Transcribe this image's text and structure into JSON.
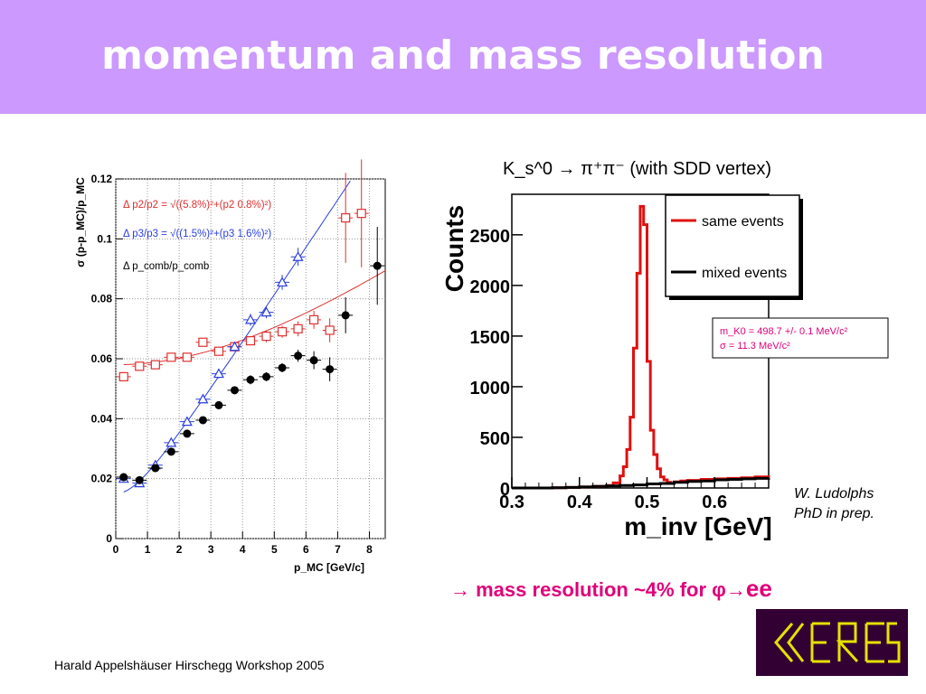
{
  "slide": {
    "title": "momentum and mass resolution",
    "footer": "Harald Appelshäuser  Hirschegg Workshop 2005",
    "credit_line1": "W. Ludolphs",
    "credit_line2": "PhD in prep.",
    "conclusion_arrow": "→",
    "conclusion_text": "mass resolution ~4% for ",
    "conclusion_phi": "φ",
    "conclusion_tail": "ee",
    "logo_text": "CERES",
    "colors": {
      "title_bg": "#cc99ff",
      "accent": "#e0007a"
    }
  },
  "chart_data": [
    {
      "type": "scatter",
      "xlabel": "p_MC [GeV/c]",
      "ylabel": "σ (p-p_MC)/p_MC",
      "xlim": [
        0,
        8.5
      ],
      "ylim": [
        0,
        0.12
      ],
      "x_ticks": [
        0,
        1,
        2,
        3,
        4,
        5,
        6,
        7,
        8
      ],
      "y_ticks": [
        0,
        0.02,
        0.04,
        0.06,
        0.08,
        0.1,
        0.12
      ],
      "grid": true,
      "legend": "top-left",
      "series": [
        {
          "name": "Δ p2/p2 = √((5.8%)²+(p2 0.8%)²)",
          "color": "#e03030",
          "marker": "open-square",
          "x": [
            0.25,
            0.75,
            1.25,
            1.75,
            2.25,
            2.75,
            3.25,
            3.75,
            4.25,
            4.75,
            5.25,
            5.75,
            6.25,
            6.75,
            7.25,
            7.75
          ],
          "y": [
            0.054,
            0.0575,
            0.058,
            0.0605,
            0.0605,
            0.0655,
            0.0625,
            0.064,
            0.066,
            0.0675,
            0.069,
            0.07,
            0.073,
            0.0695,
            0.107,
            0.1085
          ],
          "yerr": [
            0.0015,
            0.001,
            0.001,
            0.001,
            0.001,
            0.001,
            0.0015,
            0.0015,
            0.0015,
            0.002,
            0.002,
            0.0025,
            0.003,
            0.004,
            0.015,
            0.018
          ],
          "fit": {
            "a_percent": 5.8,
            "b_percent": 0.8
          }
        },
        {
          "name": "Δ p3/p3 = √((1.5%)²+(p3 1.6%)²)",
          "color": "#2a3fe0",
          "marker": "open-triangle",
          "x": [
            0.25,
            0.75,
            1.25,
            1.75,
            2.25,
            2.75,
            3.25,
            3.75,
            4.25,
            4.75,
            5.25,
            5.75
          ],
          "y": [
            0.02,
            0.0185,
            0.0245,
            0.032,
            0.039,
            0.0465,
            0.055,
            0.064,
            0.073,
            0.0755,
            0.0855,
            0.094
          ],
          "yerr": [
            0.0005,
            0.0005,
            0.0008,
            0.001,
            0.001,
            0.0012,
            0.0015,
            0.0015,
            0.002,
            0.002,
            0.0025,
            0.003
          ],
          "fit": {
            "a_percent": 1.5,
            "b_percent": 1.6
          }
        },
        {
          "name": "Δ p_comb/p_comb",
          "color": "#000000",
          "marker": "filled-circle",
          "x": [
            0.25,
            0.75,
            1.25,
            1.75,
            2.25,
            2.75,
            3.25,
            3.75,
            4.25,
            4.75,
            5.25,
            5.75,
            6.25,
            6.75,
            7.25,
            8.25
          ],
          "y": [
            0.0205,
            0.0195,
            0.0235,
            0.029,
            0.035,
            0.0395,
            0.0445,
            0.0495,
            0.053,
            0.054,
            0.057,
            0.061,
            0.0595,
            0.0565,
            0.0745,
            0.091
          ],
          "yerr": [
            0.0005,
            0.0005,
            0.0007,
            0.0008,
            0.001,
            0.001,
            0.0012,
            0.0012,
            0.0015,
            0.0015,
            0.0015,
            0.002,
            0.003,
            0.004,
            0.006,
            0.013
          ]
        }
      ]
    },
    {
      "type": "line",
      "title": "K_s^0 → π⁺π⁻ (with SDD vertex)",
      "xlabel": "m_inv [GeV]",
      "ylabel": "Counts",
      "xlim": [
        0.3,
        0.68
      ],
      "ylim": [
        0,
        2900
      ],
      "x_ticks": [
        0.3,
        0.4,
        0.5,
        0.6
      ],
      "y_ticks": [
        0,
        500,
        1000,
        1500,
        2000,
        2500
      ],
      "legend": "top-right",
      "annotation_line1": "m_K0 = 498.7 +/- 0.1 MeV/c²",
      "annotation_line2": "σ = 11.3 MeV/c²",
      "series": [
        {
          "name": "same events",
          "color": "#e01010",
          "style": "step",
          "x": [
            0.3,
            0.32,
            0.34,
            0.36,
            0.38,
            0.4,
            0.42,
            0.44,
            0.45,
            0.46,
            0.465,
            0.47,
            0.475,
            0.48,
            0.485,
            0.49,
            0.495,
            0.5,
            0.505,
            0.51,
            0.515,
            0.52,
            0.525,
            0.53,
            0.535,
            0.54,
            0.55,
            0.56,
            0.58,
            0.6,
            0.62,
            0.64,
            0.66,
            0.68
          ],
          "y": [
            0,
            0,
            0,
            2,
            5,
            10,
            15,
            25,
            50,
            120,
            210,
            380,
            700,
            1380,
            2120,
            2780,
            2600,
            1250,
            570,
            330,
            190,
            110,
            80,
            55,
            45,
            60,
            70,
            75,
            85,
            90,
            95,
            100,
            110,
            105
          ]
        },
        {
          "name": "mixed events",
          "color": "#000000",
          "style": "step",
          "x": [
            0.3,
            0.32,
            0.34,
            0.36,
            0.38,
            0.4,
            0.42,
            0.44,
            0.46,
            0.48,
            0.5,
            0.52,
            0.54,
            0.56,
            0.58,
            0.6,
            0.62,
            0.64,
            0.66,
            0.68
          ],
          "y": [
            0,
            0,
            0,
            2,
            5,
            10,
            15,
            20,
            25,
            30,
            40,
            45,
            55,
            65,
            70,
            80,
            85,
            90,
            95,
            100
          ]
        }
      ]
    }
  ]
}
